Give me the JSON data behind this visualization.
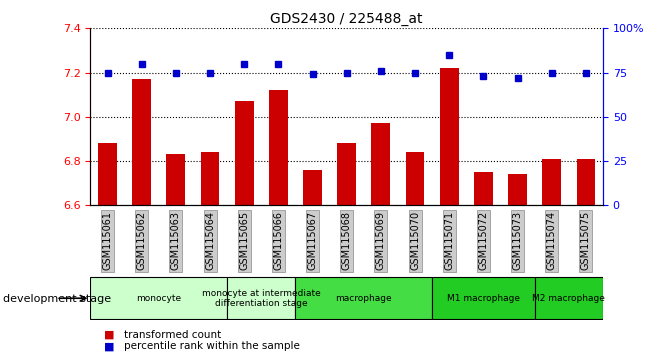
{
  "title": "GDS2430 / 225488_at",
  "samples": [
    "GSM115061",
    "GSM115062",
    "GSM115063",
    "GSM115064",
    "GSM115065",
    "GSM115066",
    "GSM115067",
    "GSM115068",
    "GSM115069",
    "GSM115070",
    "GSM115071",
    "GSM115072",
    "GSM115073",
    "GSM115074",
    "GSM115075"
  ],
  "transformed_count": [
    6.88,
    7.17,
    6.83,
    6.84,
    7.07,
    7.12,
    6.76,
    6.88,
    6.97,
    6.84,
    7.22,
    6.75,
    6.74,
    6.81,
    6.81
  ],
  "percentile_rank": [
    75,
    80,
    75,
    75,
    80,
    80,
    74,
    75,
    76,
    75,
    85,
    73,
    72,
    75,
    75
  ],
  "ylim_left": [
    6.6,
    7.4
  ],
  "ylim_right": [
    0,
    100
  ],
  "yticks_left": [
    6.6,
    6.8,
    7.0,
    7.2,
    7.4
  ],
  "yticks_right": [
    0,
    25,
    50,
    75,
    100
  ],
  "ytick_labels_right": [
    "0",
    "25",
    "50",
    "75",
    "100%"
  ],
  "bar_color": "#cc0000",
  "dot_color": "#0000cc",
  "tick_bg_color": "#cccccc",
  "group_defs": [
    {
      "start": 0,
      "end": 4,
      "color": "#ccffcc",
      "label": "monocyte"
    },
    {
      "start": 4,
      "end": 6,
      "color": "#ccffcc",
      "label": "monocyte at intermediate\ndifferentiation stage"
    },
    {
      "start": 6,
      "end": 10,
      "color": "#44dd44",
      "label": "macrophage"
    },
    {
      "start": 10,
      "end": 13,
      "color": "#22cc22",
      "label": "M1 macrophage"
    },
    {
      "start": 13,
      "end": 15,
      "color": "#22cc22",
      "label": "M2 macrophage"
    }
  ],
  "legend_items": [
    {
      "label": "transformed count",
      "color": "#cc0000"
    },
    {
      "label": "percentile rank within the sample",
      "color": "#0000cc"
    }
  ],
  "development_stage_label": "development stage"
}
